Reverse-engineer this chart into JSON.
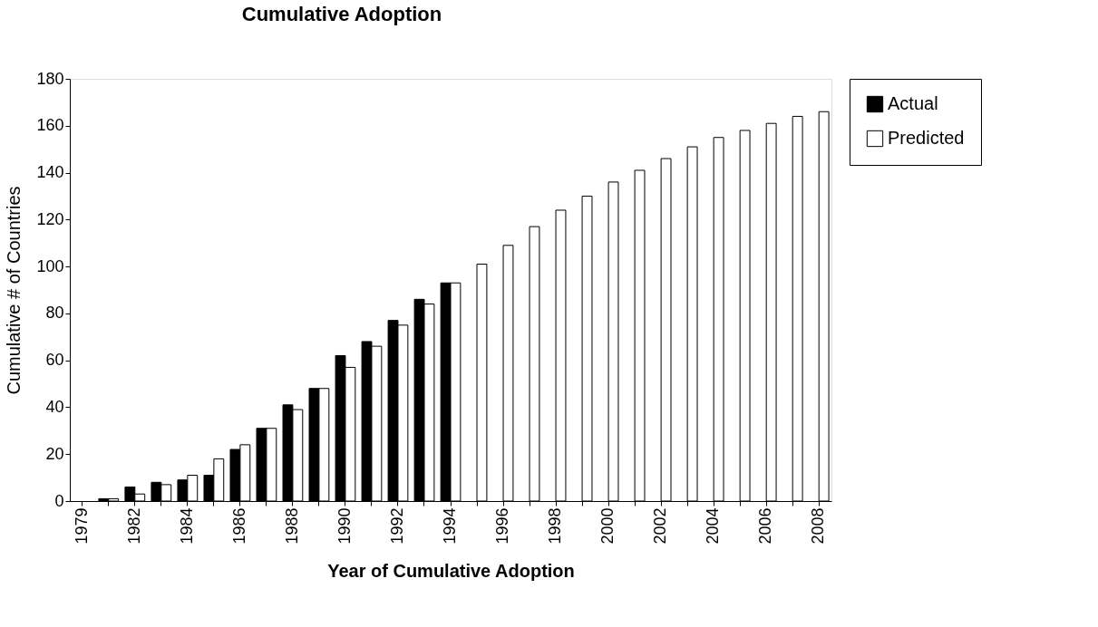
{
  "chart_data": {
    "type": "bar",
    "title": "Cumulative Adoption",
    "xlabel": "Year of Cumulative Adoption",
    "ylabel": "Cumulative # of Countries",
    "categories": [
      "1979",
      null,
      "1982",
      null,
      "1984",
      null,
      "1986",
      null,
      "1988",
      null,
      "1990",
      null,
      "1992",
      null,
      "1994",
      null,
      "1996",
      null,
      "1998",
      null,
      "2000",
      null,
      "2002",
      null,
      "2004",
      null,
      "2006",
      null,
      "2008"
    ],
    "series": [
      {
        "name": "Actual",
        "color": "#000000",
        "values": [
          null,
          1,
          6,
          8,
          9,
          11,
          22,
          31,
          41,
          48,
          62,
          68,
          77,
          86,
          93,
          null,
          null,
          null,
          null,
          null,
          null,
          null,
          null,
          null,
          null,
          null,
          null,
          null,
          null
        ]
      },
      {
        "name": "Predicted",
        "color": "#ffffff",
        "values": [
          null,
          1,
          3,
          7,
          11,
          18,
          24,
          31,
          39,
          48,
          57,
          66,
          75,
          84,
          93,
          101,
          109,
          117,
          124,
          130,
          136,
          141,
          146,
          151,
          155,
          158,
          161,
          164,
          166
        ]
      }
    ],
    "ylim": [
      0,
      180
    ],
    "yticks": [
      0,
      20,
      40,
      60,
      80,
      100,
      120,
      140,
      160,
      180
    ],
    "grid": false,
    "legend": "right"
  }
}
